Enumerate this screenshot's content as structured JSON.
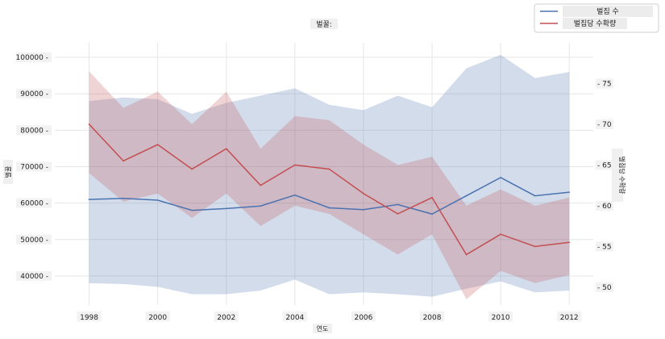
{
  "chart_data": {
    "type": "line",
    "title": "벌꿀:",
    "xlabel": "연도",
    "ylabel_left": "벌꿀",
    "ylabel_right": "벌집당 수확량",
    "x": [
      1998,
      1999,
      2000,
      2001,
      2002,
      2003,
      2004,
      2005,
      2006,
      2007,
      2008,
      2009,
      2010,
      2011,
      2012
    ],
    "x_ticks": [
      "1998",
      "2000",
      "2002",
      "2004",
      "2006",
      "2008",
      "2010",
      "2012"
    ],
    "xlim": [
      1997,
      2012.7
    ],
    "left_axis": {
      "ylim": [
        32000,
        104000
      ],
      "ticks": [
        "100000",
        "90000",
        "80000",
        "70000",
        "60000",
        "50000",
        "40000"
      ]
    },
    "right_axis": {
      "ylim": [
        47.8,
        80
      ],
      "ticks": [
        "75",
        "70",
        "65",
        "60",
        "55",
        "50"
      ]
    },
    "grid": true,
    "legend_position": "top-right",
    "series": [
      {
        "name": "벌집 수",
        "axis": "left",
        "color": "#4c72b0",
        "values": [
          61000,
          61300,
          60800,
          58000,
          58500,
          59200,
          62200,
          58700,
          58200,
          59600,
          57000,
          62000,
          67000,
          62000,
          63000
        ],
        "lower": [
          38000,
          37800,
          37000,
          35000,
          35000,
          36000,
          39000,
          35000,
          35500,
          35000,
          34300,
          36500,
          38500,
          35500,
          36000
        ],
        "upper": [
          88000,
          89000,
          88500,
          84500,
          87500,
          89500,
          91500,
          87000,
          85500,
          89500,
          86300,
          97000,
          100700,
          94300,
          96000
        ]
      },
      {
        "name": "벌집당 수확량",
        "axis": "right",
        "color": "#c44e52",
        "values": [
          70,
          65.5,
          67.5,
          64.5,
          67,
          62.5,
          65,
          64.5,
          61.5,
          59,
          61,
          54,
          56.5,
          55,
          55.5
        ],
        "lower": [
          64,
          60.5,
          61.5,
          58.5,
          61.5,
          57.5,
          60,
          59,
          56.5,
          54,
          56.5,
          48.5,
          52,
          50.5,
          51.5
        ],
        "upper": [
          76.5,
          72,
          74,
          70,
          74,
          67,
          71,
          70.5,
          67.5,
          65,
          66,
          60,
          62,
          60,
          61
        ]
      }
    ]
  }
}
